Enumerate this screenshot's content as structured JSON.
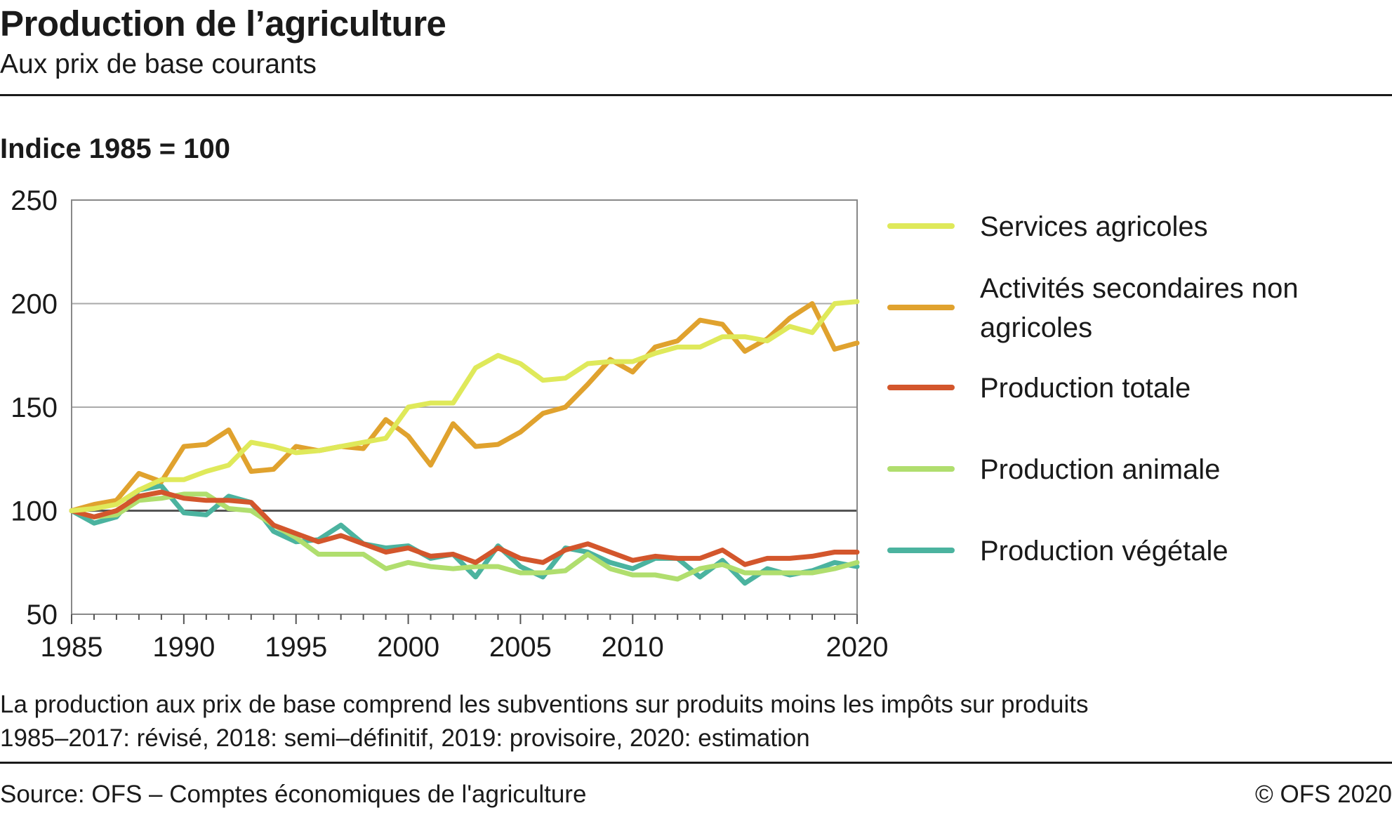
{
  "header": {
    "title": "Production de l’agriculture",
    "subtitle": "Aux prix de base courants"
  },
  "chart_data": {
    "type": "line",
    "title": "Production de l’agriculture",
    "subtitle": "Aux prix de base courants",
    "unit_label": "Indice 1985 = 100",
    "xlabel": "",
    "ylabel": "Indice 1985 = 100",
    "xlim": [
      1985,
      2020
    ],
    "ylim": [
      50,
      250
    ],
    "x_ticks": [
      1985,
      1990,
      1995,
      2000,
      2005,
      2010,
      2020
    ],
    "y_ticks": [
      50,
      100,
      150,
      200,
      250
    ],
    "grid": "horizontal",
    "legend_position": "right",
    "x": [
      1985,
      1986,
      1987,
      1988,
      1989,
      1990,
      1991,
      1992,
      1993,
      1994,
      1995,
      1996,
      1997,
      1998,
      1999,
      2000,
      2001,
      2002,
      2003,
      2004,
      2005,
      2006,
      2007,
      2008,
      2009,
      2010,
      2011,
      2012,
      2013,
      2014,
      2015,
      2016,
      2017,
      2018,
      2019,
      2020
    ],
    "series": [
      {
        "name": "Services agricoles",
        "color": "#dfe95a",
        "values": [
          100,
          101,
          103,
          110,
          115,
          115,
          119,
          122,
          133,
          131,
          128,
          129,
          131,
          133,
          135,
          150,
          152,
          152,
          169,
          175,
          171,
          163,
          164,
          171,
          172,
          172,
          176,
          179,
          179,
          184,
          184,
          182,
          189,
          186,
          200,
          201
        ]
      },
      {
        "name": "Activités secondaires non agricoles",
        "color": "#e0a22e",
        "values": [
          100,
          103,
          105,
          118,
          114,
          131,
          132,
          139,
          119,
          120,
          131,
          129,
          131,
          130,
          144,
          136,
          122,
          142,
          131,
          132,
          138,
          147,
          150,
          161,
          173,
          167,
          179,
          182,
          192,
          190,
          177,
          183,
          193,
          200,
          178,
          181
        ]
      },
      {
        "name": "Production totale",
        "color": "#d3562c",
        "values": [
          100,
          97,
          100,
          107,
          109,
          106,
          105,
          105,
          104,
          93,
          89,
          85,
          88,
          84,
          80,
          82,
          78,
          79,
          75,
          82,
          77,
          75,
          81,
          84,
          80,
          76,
          78,
          77,
          77,
          81,
          74,
          77,
          77,
          78,
          80,
          80
        ]
      },
      {
        "name": "Production animale",
        "color": "#b0de6e",
        "values": [
          100,
          97,
          98,
          105,
          106,
          108,
          108,
          101,
          100,
          93,
          87,
          79,
          79,
          79,
          72,
          75,
          73,
          72,
          73,
          73,
          70,
          70,
          71,
          79,
          72,
          69,
          69,
          67,
          72,
          74,
          70,
          70,
          70,
          70,
          72,
          75
        ]
      },
      {
        "name": "Production végétale",
        "color": "#4bb39f",
        "values": [
          100,
          94,
          97,
          110,
          112,
          99,
          98,
          107,
          104,
          90,
          85,
          86,
          93,
          84,
          82,
          83,
          77,
          79,
          68,
          83,
          73,
          68,
          82,
          80,
          75,
          72,
          77,
          77,
          68,
          76,
          65,
          72,
          69,
          71,
          75,
          73
        ]
      }
    ],
    "notes": [
      "La production aux prix de base comprend les subventions sur produits moins les impôts sur produits",
      "1985–2017: révisé, 2018: semi–définitif, 2019: provisoire, 2020: estimation"
    ],
    "source": "Source: OFS – Comptes économiques de l'agriculture",
    "copyright": "© OFS 2020"
  }
}
